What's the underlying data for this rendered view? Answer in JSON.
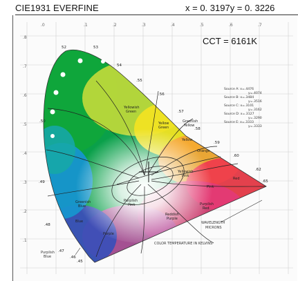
{
  "header": {
    "title": "CIE1931  EVERFINE",
    "coords": "x = 0. 3197y  = 0. 3226"
  },
  "overlay": {
    "cct": "CCT    = 6161K"
  },
  "diagram_labels": {
    "purplish_blue": "Purplish\nBlue",
    "wavelength": "WAVELENGTH\nMICRONS",
    "color_temp": "COLOR TEMPERATURE IN KELVINS",
    "yellow_green": "Yellowish\nGreen",
    "yellow": "Yellow",
    "greenish_yellow": "Greenish\nYellow",
    "orange": "Orange",
    "pink": "Pink",
    "purple": "Purple",
    "reddish_purple": "Reddish\nPurple",
    "purplish_pink": "Purplish\nPink",
    "red": "Red"
  },
  "sources_legend": [
    "Source A: x=.4476",
    "y=.4074",
    "Source B: x=.3484",
    "y=.3516",
    "Source C: x=.3101",
    "y=.3162",
    "Source D: x=.3127",
    "y=.3290",
    "Source E: x=.3333",
    "y=.3333"
  ],
  "colors": {
    "accent_cross": "#111111",
    "background": "#ffffff"
  }
}
